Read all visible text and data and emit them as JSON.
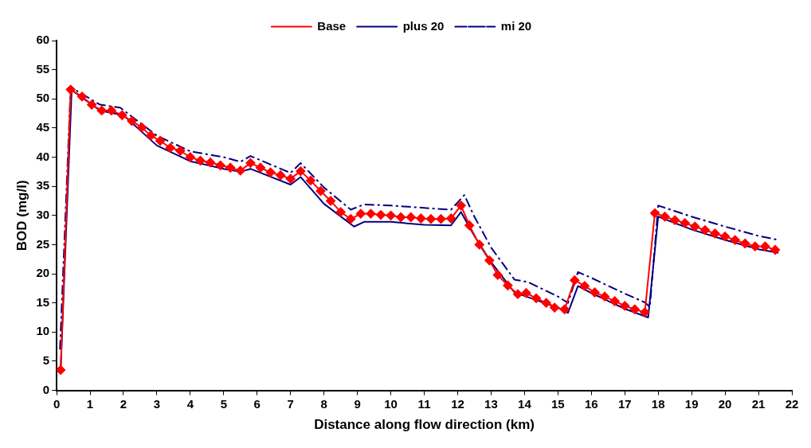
{
  "chart_data": {
    "type": "line",
    "xlabel": "Distance along flow direction (km)",
    "ylabel": "BOD (mg/l)",
    "xlim": [
      0,
      22
    ],
    "xticks": [
      0,
      1,
      2,
      3,
      4,
      5,
      6,
      7,
      8,
      9,
      10,
      11,
      12,
      13,
      14,
      15,
      16,
      17,
      18,
      19,
      20,
      21,
      22
    ],
    "ylim": [
      0,
      60
    ],
    "yticks": [
      0,
      5,
      10,
      15,
      20,
      25,
      30,
      35,
      40,
      45,
      50,
      55,
      60
    ],
    "grid": false,
    "legend": "top",
    "series": [
      {
        "name": "Base",
        "color": "#ff0000",
        "marker": "diamond",
        "line_style": "solid",
        "x": [
          0.12,
          0.42,
          0.76,
          1.05,
          1.35,
          1.64,
          1.96,
          2.25,
          2.55,
          2.82,
          3.1,
          3.4,
          3.7,
          4.0,
          4.3,
          4.6,
          4.9,
          5.2,
          5.5,
          5.8,
          6.1,
          6.4,
          6.7,
          7.0,
          7.3,
          7.6,
          7.9,
          8.2,
          8.5,
          8.8,
          9.1,
          9.4,
          9.7,
          10.0,
          10.3,
          10.6,
          10.9,
          11.2,
          11.5,
          11.8,
          12.1,
          12.35,
          12.65,
          12.95,
          13.2,
          13.5,
          13.8,
          14.05,
          14.35,
          14.65,
          14.9,
          15.2,
          15.5,
          15.8,
          16.1,
          16.4,
          16.7,
          17.0,
          17.3,
          17.6,
          17.9,
          18.2,
          18.5,
          18.8,
          19.1,
          19.4,
          19.7,
          20.0,
          20.3,
          20.6,
          20.9,
          21.2,
          21.5
        ],
        "values": [
          3.5,
          51.6,
          50.4,
          49,
          48,
          48,
          47.2,
          46.2,
          45.1,
          43.7,
          42.8,
          41.6,
          41.1,
          40,
          39.4,
          39.1,
          38.6,
          38.2,
          37.7,
          39,
          38.2,
          37.4,
          36.9,
          36.3,
          37.6,
          36,
          34.2,
          32.5,
          30.6,
          29.4,
          30.3,
          30.3,
          30.1,
          30,
          29.7,
          29.7,
          29.5,
          29.4,
          29.4,
          29.5,
          31.7,
          28.3,
          25,
          22.3,
          19.8,
          18,
          16.5,
          16.7,
          15.8,
          15,
          14.2,
          13.9,
          18.9,
          17.9,
          16.8,
          16.1,
          15.3,
          14.5,
          13.9,
          13.4,
          30.4,
          29.8,
          29.2,
          28.7,
          28.1,
          27.5,
          26.9,
          26.4,
          25.8,
          25.2,
          24.7,
          24.7,
          24.1
        ]
      },
      {
        "name": "plus 20",
        "color": "#000080",
        "marker": "none",
        "line_style": "solid",
        "x": [
          0.12,
          0.45,
          1.3,
          2,
          3,
          4,
          5,
          5.5,
          5.8,
          7,
          7.3,
          8,
          8.9,
          9.2,
          10,
          11,
          11.8,
          12.1,
          12.5,
          13,
          13.7,
          14.1,
          15,
          15.3,
          15.6,
          16,
          17,
          17.7,
          18,
          19,
          20,
          21,
          21.6
        ],
        "values": [
          3.5,
          51.5,
          48,
          47.2,
          42,
          39.3,
          38,
          37.5,
          38,
          35.3,
          36.6,
          32,
          28.1,
          28.9,
          28.9,
          28.4,
          28.3,
          30.6,
          26.5,
          22,
          16.8,
          16,
          14.2,
          13.3,
          17.9,
          16.7,
          14,
          12.5,
          29.8,
          27.6,
          25.8,
          24.2,
          23.6
        ]
      },
      {
        "name": "mi 20",
        "color": "#000080",
        "marker": "none",
        "line_style": "dashed",
        "x": [
          0.1,
          0.42,
          1.3,
          1.9,
          3,
          4,
          5,
          5.5,
          5.8,
          7,
          7.3,
          8,
          8.8,
          9.2,
          10,
          11,
          11.8,
          12.2,
          12.5,
          13,
          13.7,
          14.1,
          15,
          15.3,
          15.6,
          16,
          17,
          17.6,
          17.75,
          18,
          19,
          20,
          21,
          21.6
        ],
        "values": [
          7,
          52,
          49,
          48.5,
          43.7,
          41,
          40,
          39.2,
          40.2,
          37.3,
          39,
          34.8,
          31,
          31.9,
          31.7,
          31.3,
          31,
          33.5,
          29.8,
          24.5,
          19,
          18.6,
          16.1,
          15,
          20.3,
          19.3,
          16.6,
          15.1,
          14.3,
          31.7,
          29.8,
          28.1,
          26.5,
          25.8
        ]
      }
    ]
  }
}
